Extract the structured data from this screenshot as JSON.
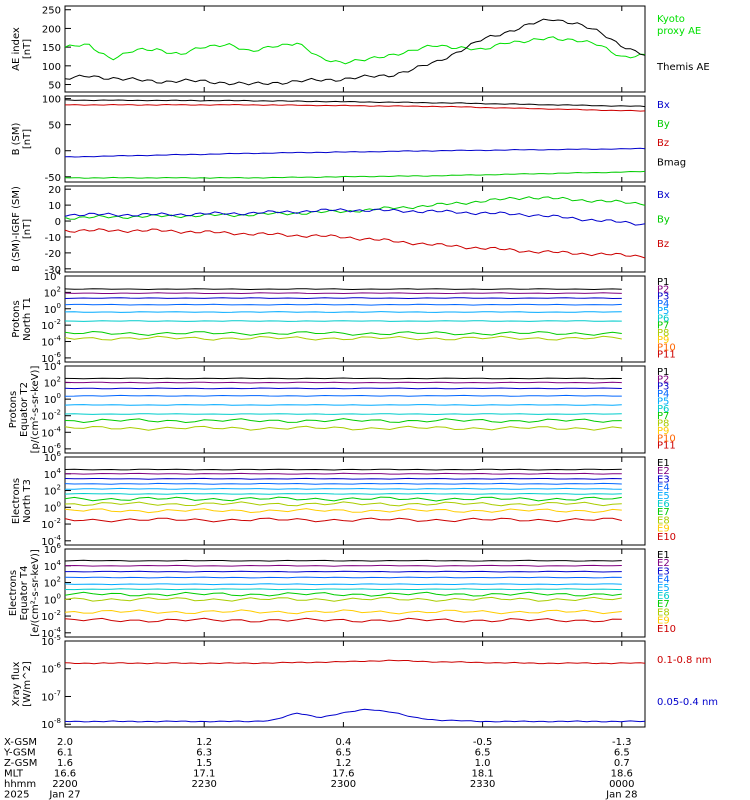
{
  "chart_data": [
    {
      "type": "line",
      "ylabel": [
        "AE index",
        "[nT]"
      ],
      "yticks": [
        50,
        100,
        150,
        200,
        250
      ],
      "ylim": [
        30,
        260
      ],
      "legend": [
        {
          "text": "Kyoto",
          "color": "#00e000"
        },
        {
          "text": "proxy AE",
          "color": "#00e000"
        },
        {
          "text": "Themis AE",
          "color": "#000000"
        }
      ],
      "series": [
        {
          "color": "#00e000",
          "x": [
            0,
            5,
            10,
            15,
            20,
            25,
            30,
            35,
            40,
            45,
            50,
            55,
            60,
            65,
            70,
            75,
            80,
            85,
            90,
            95,
            100,
            105,
            110,
            115,
            120,
            125
          ],
          "y": [
            150,
            155,
            120,
            140,
            145,
            130,
            150,
            160,
            135,
            155,
            160,
            120,
            110,
            115,
            130,
            140,
            155,
            150,
            140,
            165,
            165,
            175,
            170,
            155,
            125,
            128
          ]
        },
        {
          "color": "#000000",
          "x": [
            0,
            5,
            10,
            15,
            20,
            25,
            30,
            35,
            40,
            45,
            50,
            55,
            60,
            65,
            70,
            75,
            80,
            85,
            90,
            95,
            100,
            105,
            110,
            115,
            120,
            125
          ],
          "y": [
            65,
            72,
            68,
            62,
            58,
            60,
            58,
            55,
            50,
            55,
            58,
            62,
            65,
            70,
            75,
            90,
            110,
            140,
            170,
            190,
            210,
            225,
            215,
            190,
            155,
            128
          ]
        }
      ]
    },
    {
      "type": "line",
      "ylabel": [
        "B (SM)",
        "[nT]"
      ],
      "yticks": [
        -50,
        0,
        50,
        100
      ],
      "ylim": [
        -60,
        105
      ],
      "legend": [
        {
          "text": "Bx",
          "color": "#0000cc"
        },
        {
          "text": "By",
          "color": "#00cc00"
        },
        {
          "text": "Bz",
          "color": "#cc0000"
        },
        {
          "text": "Bmag",
          "color": "#000000"
        }
      ],
      "series": [
        {
          "color": "#000000",
          "x": [
            0,
            40,
            80,
            125
          ],
          "y": [
            97,
            96,
            92,
            85
          ]
        },
        {
          "color": "#cc0000",
          "x": [
            0,
            40,
            80,
            125
          ],
          "y": [
            88,
            88,
            85,
            76
          ]
        },
        {
          "color": "#0000cc",
          "x": [
            0,
            40,
            80,
            125
          ],
          "y": [
            -12,
            -5,
            0,
            4
          ]
        },
        {
          "color": "#00cc00",
          "x": [
            0,
            40,
            80,
            125
          ],
          "y": [
            -52,
            -52,
            -48,
            -40
          ]
        }
      ]
    },
    {
      "type": "line",
      "ylabel": [
        "B (SM)-IGRF (SM)",
        "[nT]"
      ],
      "yticks": [
        -30,
        -20,
        -10,
        0,
        10,
        20
      ],
      "ylim": [
        -32,
        22
      ],
      "legend": [
        {
          "text": "Bx",
          "color": "#0000cc"
        },
        {
          "text": "By",
          "color": "#00cc00"
        },
        {
          "text": "Bz",
          "color": "#cc0000"
        }
      ],
      "series": [
        {
          "color": "#00cc00",
          "x": [
            0,
            20,
            40,
            60,
            80,
            100,
            125
          ],
          "y": [
            2,
            3,
            4,
            6,
            10,
            15,
            11
          ]
        },
        {
          "color": "#0000cc",
          "x": [
            0,
            20,
            40,
            60,
            80,
            100,
            125
          ],
          "y": [
            4,
            4,
            5,
            7,
            6,
            4,
            -2
          ]
        },
        {
          "color": "#cc0000",
          "x": [
            0,
            20,
            40,
            60,
            80,
            100,
            125
          ],
          "y": [
            -6,
            -6,
            -8,
            -10,
            -15,
            -19,
            -22
          ]
        }
      ]
    },
    {
      "type": "line",
      "log": true,
      "ylabel": [
        "Protons",
        "North T1"
      ],
      "ytick_exps": [
        -6,
        -4,
        -2,
        0,
        2,
        4
      ],
      "ylim_exp": [
        -6.5,
        4
      ],
      "legend": [
        "P1",
        "P2",
        "P3",
        "P4",
        "P5",
        "P6",
        "P7",
        "P8",
        "P9",
        "P10",
        "P11"
      ],
      "colors": [
        "#000000",
        "#800080",
        "#0000cc",
        "#0066ff",
        "#00aaff",
        "#00cccc",
        "#00cc00",
        "#aacc00",
        "#ffcc00",
        "#ff6600",
        "#cc0000"
      ],
      "levels_exp": [
        2.4,
        1.9,
        1.3,
        0.5,
        -0.4,
        -1.5,
        -3.0,
        -3.6
      ],
      "x_end": 120
    },
    {
      "type": "line",
      "log": true,
      "ylabel": [
        "Protons",
        "Equator T2",
        "[p/(cm²-s-sr-keV)]"
      ],
      "ytick_exps": [
        -6,
        -4,
        -2,
        0,
        2,
        4
      ],
      "ylim_exp": [
        -6.5,
        4
      ],
      "legend": [
        "P1",
        "P2",
        "P3",
        "P4",
        "P5",
        "P6",
        "P7",
        "P8",
        "P9",
        "P10",
        "P11"
      ],
      "colors": [
        "#000000",
        "#800080",
        "#0000cc",
        "#0066ff",
        "#00aaff",
        "#00cccc",
        "#00cc00",
        "#aacc00",
        "#ffcc00",
        "#ff6600",
        "#cc0000"
      ],
      "levels_exp": [
        2.5,
        2.0,
        1.3,
        0.4,
        -0.7,
        -1.8,
        -2.6,
        -3.5
      ],
      "x_end": 120
    },
    {
      "type": "line",
      "log": true,
      "ylabel": [
        "Electrons",
        "North T3"
      ],
      "ytick_exps": [
        -4,
        -2,
        0,
        2,
        4,
        6
      ],
      "ylim_exp": [
        -4.5,
        6
      ],
      "legend": [
        "E1",
        "E2",
        "E3",
        "E4",
        "E5",
        "E6",
        "E7",
        "E8",
        "E9",
        "E10"
      ],
      "colors": [
        "#000000",
        "#800080",
        "#0000cc",
        "#0066ff",
        "#00aaff",
        "#00cccc",
        "#00cc00",
        "#aacc00",
        "#ffcc00",
        "#cc0000"
      ],
      "levels_exp": [
        4.5,
        4.0,
        3.4,
        2.8,
        2.2,
        1.6,
        1.0,
        0.4,
        -0.4,
        -1.5
      ],
      "x_end": 120
    },
    {
      "type": "line",
      "log": true,
      "ylabel": [
        "Electrons",
        "Equator T4",
        "[e/(cm²-s-sr-keV)]"
      ],
      "ytick_exps": [
        -4,
        -2,
        0,
        2,
        4,
        6
      ],
      "ylim_exp": [
        -4.5,
        6
      ],
      "legend": [
        "E1",
        "E2",
        "E3",
        "E4",
        "E5",
        "E6",
        "E7",
        "E8",
        "E9",
        "E10"
      ],
      "colors": [
        "#000000",
        "#800080",
        "#0000cc",
        "#0066ff",
        "#00aaff",
        "#00cccc",
        "#00cc00",
        "#aacc00",
        "#ffcc00",
        "#cc0000"
      ],
      "levels_exp": [
        4.6,
        4.0,
        3.3,
        2.6,
        1.8,
        1.2,
        0.6,
        0.0,
        -1.5,
        -2.5
      ],
      "x_end": 120
    },
    {
      "type": "line",
      "log": true,
      "ylabel": [
        "Xray flux",
        "[W/m^2]"
      ],
      "ytick_exps": [
        -8,
        -7,
        -6,
        -5
      ],
      "ylim_exp": [
        -8.1,
        -5
      ],
      "legend": [
        {
          "text": "0.1-0.8 nm",
          "color": "#cc0000"
        },
        {
          "text": "0.05-0.4 nm",
          "color": "#0000cc"
        }
      ],
      "series": [
        {
          "color": "#cc0000",
          "x": [
            0,
            40,
            60,
            70,
            80,
            100,
            125
          ],
          "y_exp": [
            -5.8,
            -5.8,
            -5.75,
            -5.7,
            -5.75,
            -5.8,
            -5.8
          ]
        },
        {
          "color": "#0000cc",
          "x": [
            0,
            40,
            45,
            50,
            55,
            60,
            65,
            70,
            75,
            80,
            90,
            100,
            125
          ],
          "y_exp": [
            -7.9,
            -7.9,
            -7.85,
            -7.6,
            -7.75,
            -7.6,
            -7.45,
            -7.55,
            -7.75,
            -7.85,
            -7.9,
            -7.9,
            -7.9
          ]
        }
      ]
    }
  ],
  "x_axis": {
    "range_minutes": [
      0,
      125
    ],
    "tick_minutes": [
      0,
      30,
      60,
      90,
      120
    ]
  },
  "ephemeris": {
    "rows": [
      {
        "label": "X-GSM",
        "values": [
          "2.0",
          "1.2",
          "0.4",
          "-0.5",
          "-1.3"
        ]
      },
      {
        "label": "Y-GSM",
        "values": [
          "6.1",
          "6.3",
          "6.5",
          "6.5",
          "6.5"
        ]
      },
      {
        "label": "Z-GSM",
        "values": [
          "1.6",
          "1.5",
          "1.2",
          "1.0",
          "0.7"
        ]
      },
      {
        "label": "MLT",
        "values": [
          "16.6",
          "17.1",
          "17.6",
          "18.1",
          "18.6"
        ]
      },
      {
        "label": "hhmm",
        "values": [
          "2200",
          "2230",
          "2300",
          "2330",
          "0000"
        ]
      },
      {
        "label": "2025",
        "values": [
          "Jan 27",
          "",
          "",
          "",
          "Jan 28"
        ]
      }
    ]
  }
}
